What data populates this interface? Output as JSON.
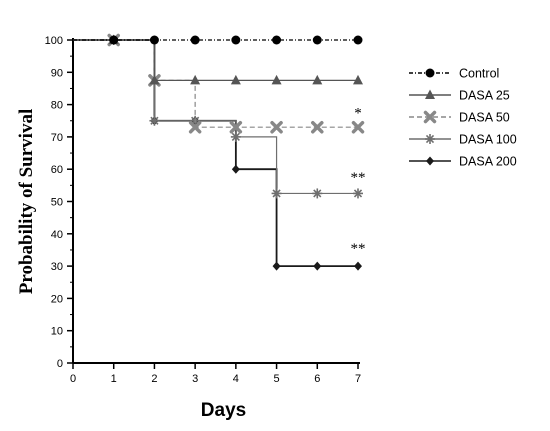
{
  "chart_data": {
    "type": "line",
    "xlabel": "Days",
    "ylabel": "Probability of Survival",
    "xlim": [
      0,
      7
    ],
    "ylim": [
      0,
      100
    ],
    "x_ticks": [
      0,
      1,
      2,
      3,
      4,
      5,
      6,
      7
    ],
    "y_ticks": [
      0,
      10,
      20,
      30,
      40,
      50,
      60,
      70,
      80,
      90,
      100
    ],
    "step": true,
    "legend_position": "right",
    "series": [
      {
        "name": "Control",
        "line_style": "dash-dot",
        "marker": "circle",
        "color": "#000000",
        "x": [
          0,
          1,
          2,
          3,
          4,
          5,
          6,
          7
        ],
        "values": [
          100,
          100,
          100,
          100,
          100,
          100,
          100,
          100
        ]
      },
      {
        "name": "DASA 25",
        "line_style": "solid",
        "marker": "triangle",
        "color": "#555555",
        "x": [
          0,
          1,
          2,
          3,
          4,
          5,
          6,
          7
        ],
        "values": [
          100,
          100,
          87.5,
          87.5,
          87.5,
          87.5,
          87.5,
          87.5
        ]
      },
      {
        "name": "DASA 50",
        "line_style": "dashed",
        "marker": "cross",
        "color": "#888888",
        "x": [
          0,
          1,
          2,
          3,
          4,
          5,
          6,
          7
        ],
        "values": [
          100,
          100,
          87.5,
          73,
          73,
          73,
          73,
          73
        ]
      },
      {
        "name": "DASA 100",
        "line_style": "solid",
        "marker": "asterisk",
        "color": "#6e6e6e",
        "x": [
          0,
          1,
          2,
          3,
          4,
          5,
          6,
          7
        ],
        "values": [
          100,
          100,
          75,
          75,
          70,
          52.5,
          52.5,
          52.5
        ]
      },
      {
        "name": "DASA 200",
        "line_style": "solid",
        "marker": "diamond",
        "color": "#1a1a1a",
        "x": [
          0,
          1,
          2,
          3,
          4,
          5,
          6,
          7
        ],
        "values": [
          100,
          100,
          75,
          75,
          60,
          30,
          30,
          30
        ]
      }
    ],
    "annotations": [
      {
        "text": "*",
        "x": 7,
        "y": 76
      },
      {
        "text": "**",
        "x": 7,
        "y": 56
      },
      {
        "text": "**",
        "x": 7,
        "y": 34
      }
    ]
  }
}
